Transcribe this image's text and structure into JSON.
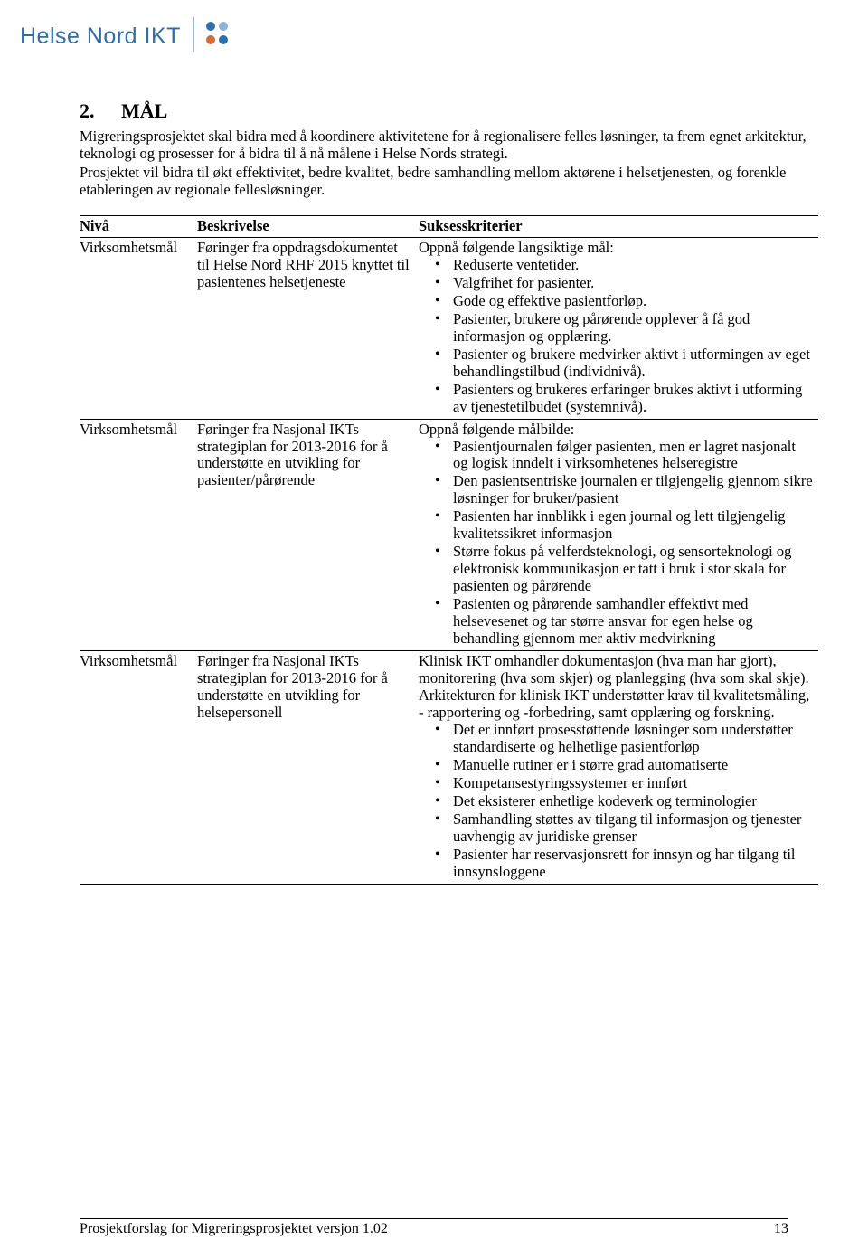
{
  "logo": {
    "text": "Helse Nord IKT",
    "color": "#2f6fa8",
    "dot_colors": [
      "#2f6fa8",
      "#8fb4d4",
      "#d46a3a",
      "#2f6fa8"
    ]
  },
  "section": {
    "num": "2.",
    "title": "MÅL"
  },
  "paragraphs": [
    "Migreringsprosjektet skal bidra med å koordinere aktivitetene for å regionalisere felles løsninger, ta frem egnet arkitektur, teknologi og prosesser for å bidra til å nå målene i Helse Nords strategi.",
    "Prosjektet vil bidra til økt effektivitet, bedre kvalitet, bedre samhandling mellom aktørene i helsetjenesten, og forenkle etableringen av regionale fellesløsninger."
  ],
  "table": {
    "headers": [
      "Nivå",
      "Beskrivelse",
      "Suksesskriterier"
    ],
    "rows": [
      {
        "niva": "Virksomhetsmål",
        "beskrivelse": "Føringer fra oppdragsdokumentet til Helse Nord RHF 2015 knyttet til pasientenes helsetjeneste",
        "suksess_intro": "Oppnå følgende langsiktige mål:",
        "suksess_bullets": [
          "Reduserte ventetider.",
          "Valgfrihet for pasienter.",
          "Gode og effektive pasientforløp.",
          "Pasienter, brukere og pårørende opplever å få god informasjon og opplæring.",
          "Pasienter og brukere medvirker aktivt i utformingen av eget behandlingstilbud (individnivå).",
          "Pasienters og brukeres erfaringer brukes aktivt i utforming av tjenestetilbudet (systemnivå)."
        ]
      },
      {
        "niva": "Virksomhetsmål",
        "beskrivelse": "Føringer fra Nasjonal IKTs strategiplan for 2013-2016 for å understøtte en utvikling for pasienter/pårørende",
        "suksess_intro": "Oppnå følgende målbilde:",
        "suksess_bullets": [
          "Pasientjournalen følger pasienten, men er lagret nasjonalt og logisk inndelt i virksomhetenes helseregistre",
          "Den pasientsentriske journalen er tilgjengelig gjennom sikre løsninger for bruker/pasient",
          "Pasienten har innblikk i egen journal og lett tilgjengelig kvalitetssikret informasjon",
          "Større fokus på velferdsteknologi, og sensorteknologi og elektronisk kommunikasjon er tatt i   bruk i stor skala for pasienten og pårørende",
          "Pasienten og pårørende samhandler effektivt med helsevesenet og tar større ansvar for egen   helse og behandling gjennom mer aktiv medvirkning"
        ]
      },
      {
        "niva": "Virksomhetsmål",
        "beskrivelse": "Føringer fra Nasjonal IKTs strategiplan for 2013-2016 for å understøtte en utvikling for helsepersonell",
        "suksess_intro": "Klinisk IKT omhandler dokumentasjon (hva man har gjort), monitorering (hva som skjer) og planlegging (hva som skal skje). Arkitekturen for klinisk IKT understøtter krav til kvalitetsmåling, - rapportering og -forbedring, samt opplæring og forskning.",
        "suksess_bullets": [
          "Det er innført prosesstøttende løsninger som understøtter standardiserte og helhetlige pasientforløp",
          "Manuelle rutiner er i større grad automatiserte",
          "Kompetansestyringssystemer er innført",
          "Det eksisterer enhetlige kodeverk og terminologier",
          "Samhandling støttes av tilgang til informasjon og tjenester uavhengig av juridiske grenser",
          "Pasienter har reservasjonsrett for innsyn og har tilgang til innsynsloggene"
        ]
      }
    ]
  },
  "footer": {
    "text": "Prosjektforslag for Migreringsprosjektet versjon 1.02",
    "page": "13"
  }
}
